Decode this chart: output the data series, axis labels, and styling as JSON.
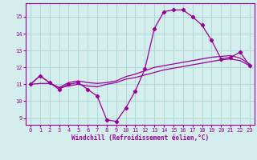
{
  "xlabel": "Windchill (Refroidissement éolien,°C)",
  "hours": [
    0,
    1,
    2,
    3,
    4,
    5,
    6,
    7,
    8,
    9,
    10,
    11,
    12,
    13,
    14,
    15,
    16,
    17,
    18,
    19,
    20,
    21,
    22,
    23
  ],
  "windchill": [
    11.0,
    11.5,
    11.1,
    10.7,
    11.0,
    11.1,
    10.7,
    10.3,
    8.9,
    8.8,
    9.6,
    10.6,
    11.9,
    14.3,
    15.3,
    15.4,
    15.4,
    15.0,
    14.5,
    13.6,
    12.5,
    12.6,
    12.9,
    12.1
  ],
  "temp_upper": [
    11.0,
    11.5,
    11.1,
    10.8,
    11.1,
    11.2,
    11.1,
    11.05,
    11.1,
    11.2,
    11.45,
    11.6,
    11.8,
    12.0,
    12.1,
    12.2,
    12.3,
    12.4,
    12.5,
    12.6,
    12.65,
    12.7,
    12.55,
    12.2
  ],
  "temp_lower": [
    11.0,
    11.05,
    11.05,
    10.8,
    10.9,
    11.0,
    10.9,
    10.85,
    11.0,
    11.1,
    11.3,
    11.4,
    11.55,
    11.7,
    11.85,
    11.95,
    12.05,
    12.15,
    12.25,
    12.35,
    12.45,
    12.5,
    12.4,
    12.1
  ],
  "line_color": "#990099",
  "bg_color": "#d4eeee",
  "grid_color": "#b0d8d8",
  "ylim": [
    8.6,
    15.8
  ],
  "yticks": [
    9,
    10,
    11,
    12,
    13,
    14,
    15
  ],
  "xticks": [
    0,
    1,
    2,
    3,
    4,
    5,
    6,
    7,
    8,
    9,
    10,
    11,
    12,
    13,
    14,
    15,
    16,
    17,
    18,
    19,
    20,
    21,
    22,
    23
  ]
}
